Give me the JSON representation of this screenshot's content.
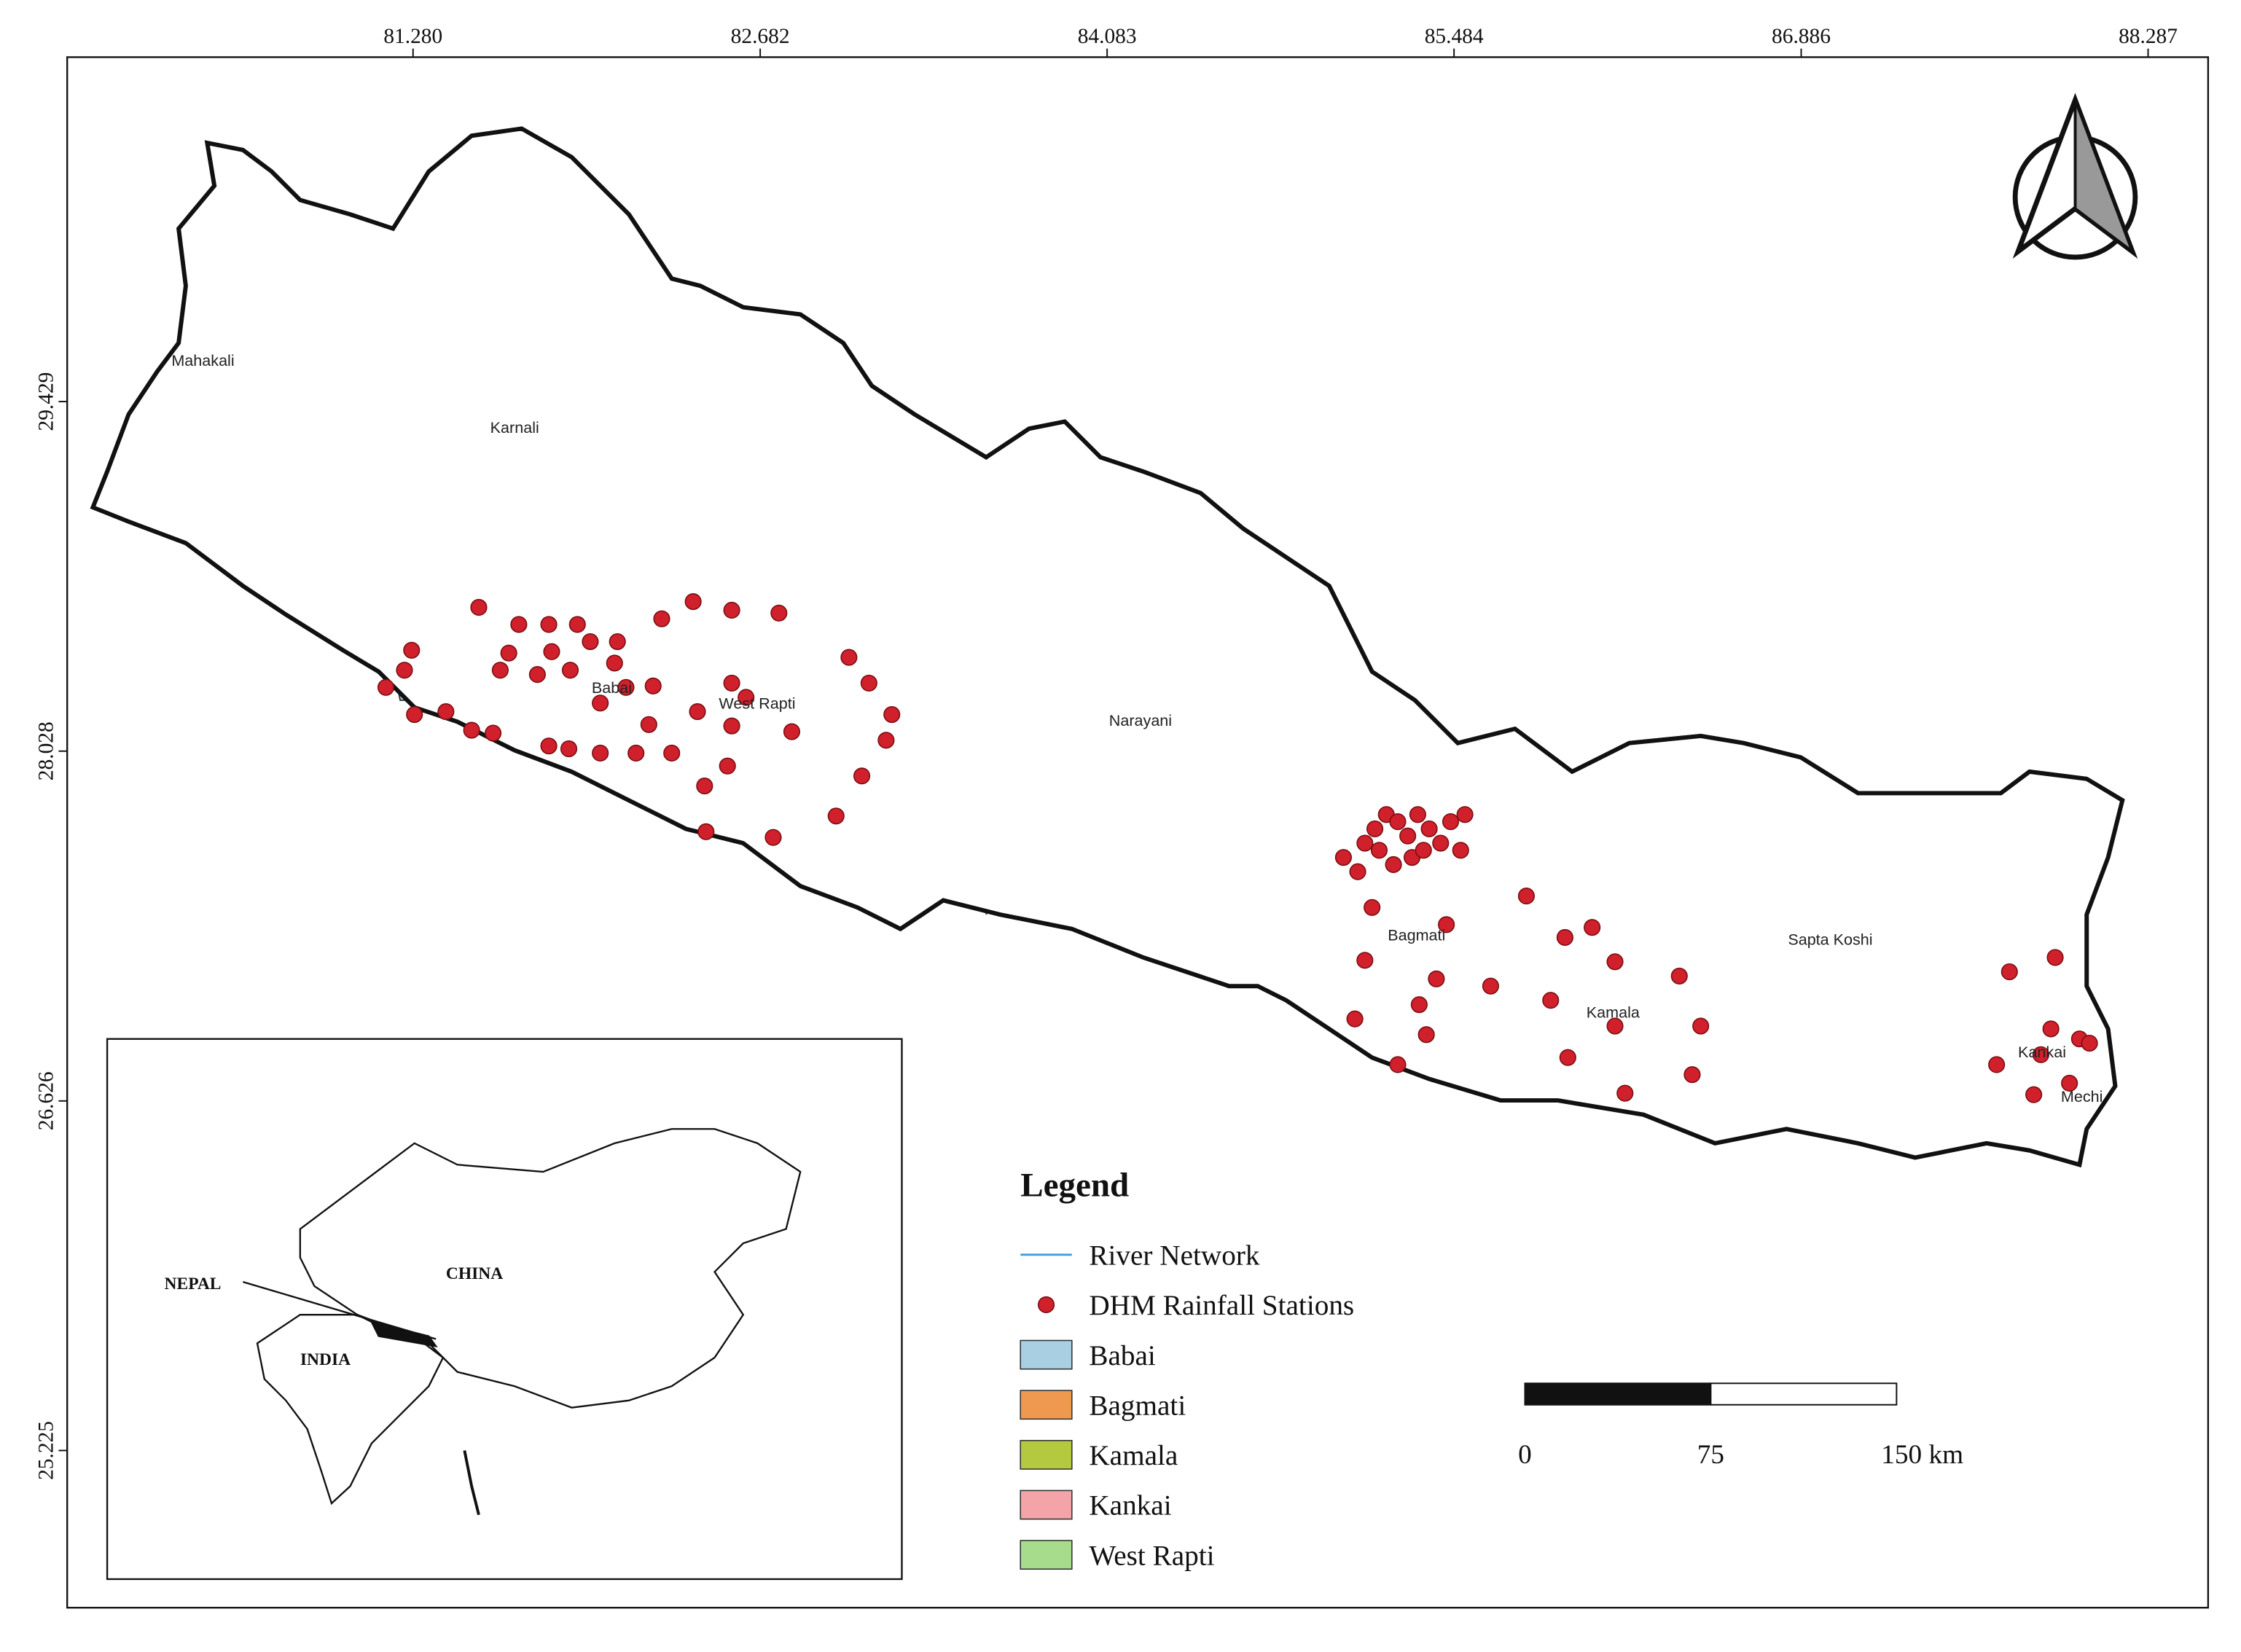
{
  "map": {
    "lon_ticks": [
      {
        "value": 81.28,
        "label": "81.280"
      },
      {
        "value": 82.682,
        "label": "82.682"
      },
      {
        "value": 84.083,
        "label": "84.083"
      },
      {
        "value": 85.484,
        "label": "85.484"
      },
      {
        "value": 86.886,
        "label": "86.886"
      },
      {
        "value": 88.287,
        "label": "88.287"
      }
    ],
    "lat_ticks": [
      {
        "value": 29.429,
        "label": "29.429"
      },
      {
        "value": 28.028,
        "label": "28.028"
      },
      {
        "value": 26.626,
        "label": "26.626"
      },
      {
        "value": 25.225,
        "label": "25.225"
      }
    ],
    "basin_labels": [
      "Mahakali",
      "Karnali",
      "Babai",
      "West Rapti",
      "Narayani",
      "Bagmati",
      "Kamala",
      "Sapta Koshi",
      "Kankai",
      "Mechi"
    ]
  },
  "legend": {
    "title": "Legend",
    "items": [
      {
        "name": "River Network",
        "color": "#3a9ee6"
      },
      {
        "name": "DHM Rainfall Stations",
        "color": "#d0202b"
      },
      {
        "name": "Babai",
        "color": "#a9cfe3"
      },
      {
        "name": "Bagmati",
        "color": "#ef9850"
      },
      {
        "name": "Kamala",
        "color": "#b4c940"
      },
      {
        "name": "Kankai",
        "color": "#f4a3a8"
      },
      {
        "name": "West Rapti",
        "color": "#a6dc8c"
      }
    ]
  },
  "scale_bar": {
    "labels": [
      "0",
      "75",
      "150 km"
    ]
  },
  "inset": {
    "labels": [
      "NEPAL",
      "CHINA",
      "INDIA"
    ]
  }
}
